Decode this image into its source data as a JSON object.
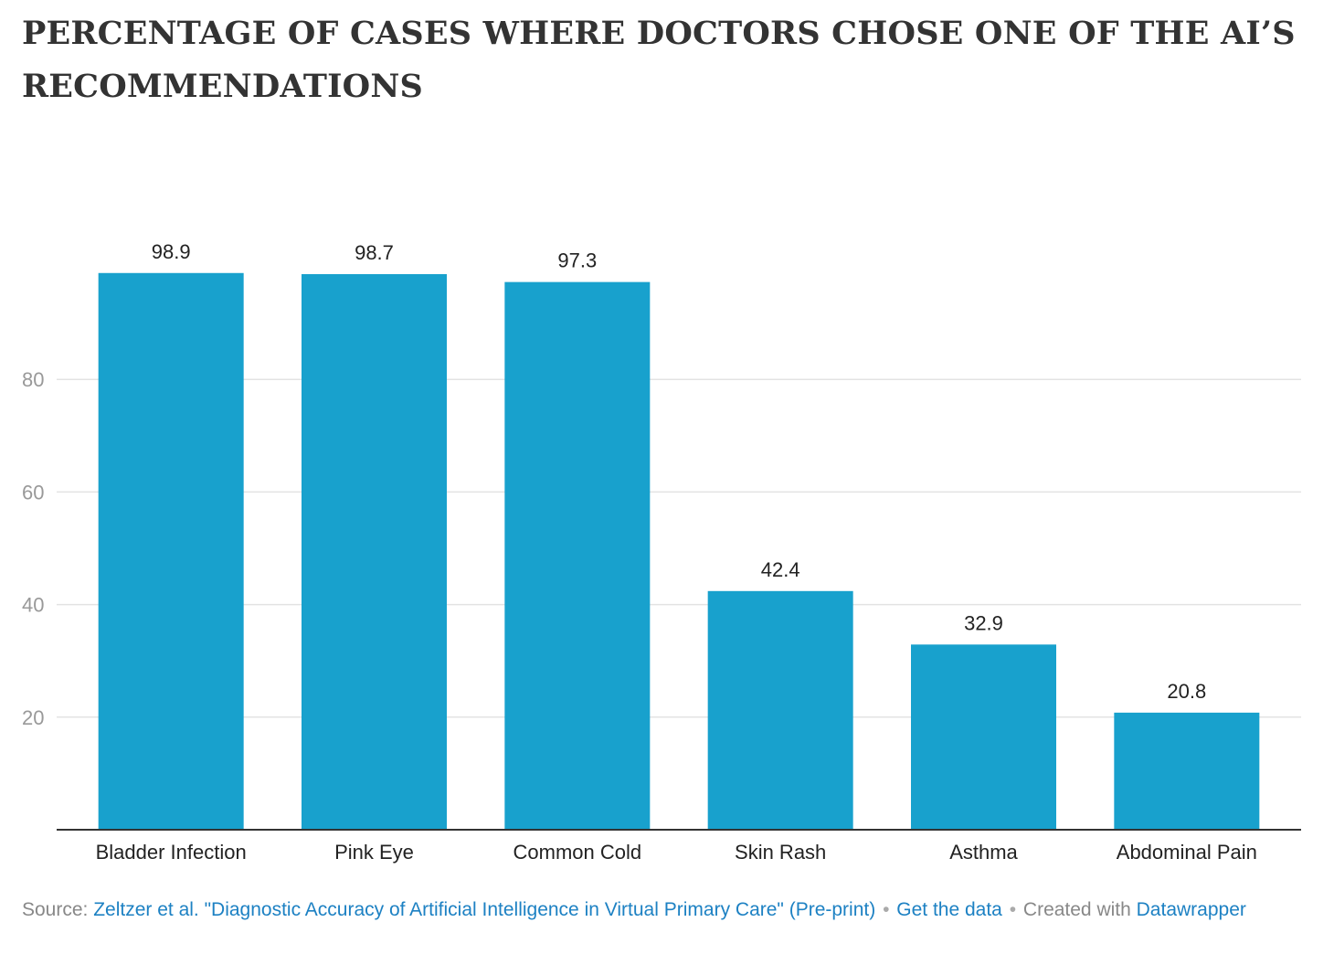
{
  "header": {
    "title": "PERCENTAGE OF CASES WHERE DOCTORS CHOSE ONE OF THE AI’S RECOMMENDATIONS"
  },
  "chart_data": {
    "type": "bar",
    "categories": [
      "Bladder Infection",
      "Pink Eye",
      "Common Cold",
      "Skin Rash",
      "Asthma",
      "Abdominal Pain"
    ],
    "values": [
      98.9,
      98.7,
      97.3,
      42.4,
      32.9,
      20.8
    ],
    "yticks": [
      20,
      40,
      60,
      80
    ],
    "ylim": [
      0,
      100
    ],
    "grid": true,
    "bar_color": "#18a1cd",
    "grid_color": "#e3e3e3",
    "axis_color": "#333333",
    "tick_label_color": "#999999"
  },
  "footer": {
    "source_prefix": "Source:",
    "source_link": "Zeltzer et al. \"Diagnostic Accuracy of Artificial Intelligence in Virtual Primary Care\" (Pre-print)",
    "separator": "•",
    "data_link": "Get the data",
    "created_text": "Created with",
    "tool_link": "Datawrapper"
  }
}
